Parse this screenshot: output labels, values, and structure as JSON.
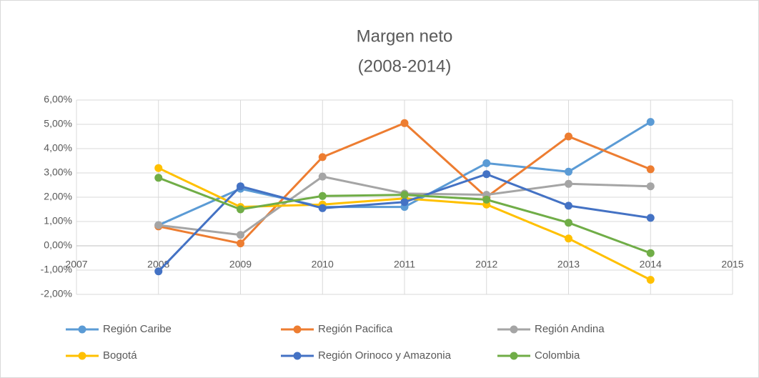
{
  "chart_data": {
    "type": "line",
    "title": "Margen neto",
    "subtitle": "(2008-2014)",
    "x": [
      2008,
      2009,
      2010,
      2011,
      2012,
      2013,
      2014
    ],
    "xlim": [
      2007,
      2015
    ],
    "xticks": [
      2007,
      2008,
      2009,
      2010,
      2011,
      2012,
      2013,
      2014,
      2015
    ],
    "ylim": [
      -2,
      6
    ],
    "yticks": [
      {
        "value": -2,
        "label": "-2,00%"
      },
      {
        "value": -1,
        "label": "-1,00%"
      },
      {
        "value": 0,
        "label": "0,00%"
      },
      {
        "value": 1,
        "label": "1,00%"
      },
      {
        "value": 2,
        "label": "2,00%"
      },
      {
        "value": 3,
        "label": "3,00%"
      },
      {
        "value": 4,
        "label": "4,00%"
      },
      {
        "value": 5,
        "label": "5,00%"
      },
      {
        "value": 6,
        "label": "6,00%"
      }
    ],
    "grid": true,
    "legend": "bottom",
    "series": [
      {
        "name": "Región Caribe",
        "color": "#5b9bd5",
        "values": [
          0.85,
          2.35,
          1.6,
          1.6,
          3.4,
          3.05,
          5.1
        ]
      },
      {
        "name": "Región Pacifica",
        "color": "#ed7d31",
        "values": [
          0.8,
          0.1,
          3.65,
          5.05,
          2.0,
          4.5,
          3.15
        ]
      },
      {
        "name": "Región Andina",
        "color": "#a5a5a5",
        "values": [
          0.85,
          0.45,
          2.85,
          2.15,
          2.1,
          2.55,
          2.45
        ]
      },
      {
        "name": "Bogotá",
        "color": "#ffc000",
        "values": [
          3.2,
          1.6,
          1.7,
          1.95,
          1.7,
          0.3,
          -1.4
        ]
      },
      {
        "name": "Región Orinoco y Amazonia",
        "color": "#4472c4",
        "values": [
          -1.05,
          2.45,
          1.55,
          1.8,
          2.95,
          1.65,
          1.15
        ]
      },
      {
        "name": "Colombia",
        "color": "#70ad47",
        "values": [
          2.8,
          1.5,
          2.05,
          2.1,
          1.9,
          0.95,
          -0.3
        ]
      }
    ]
  }
}
